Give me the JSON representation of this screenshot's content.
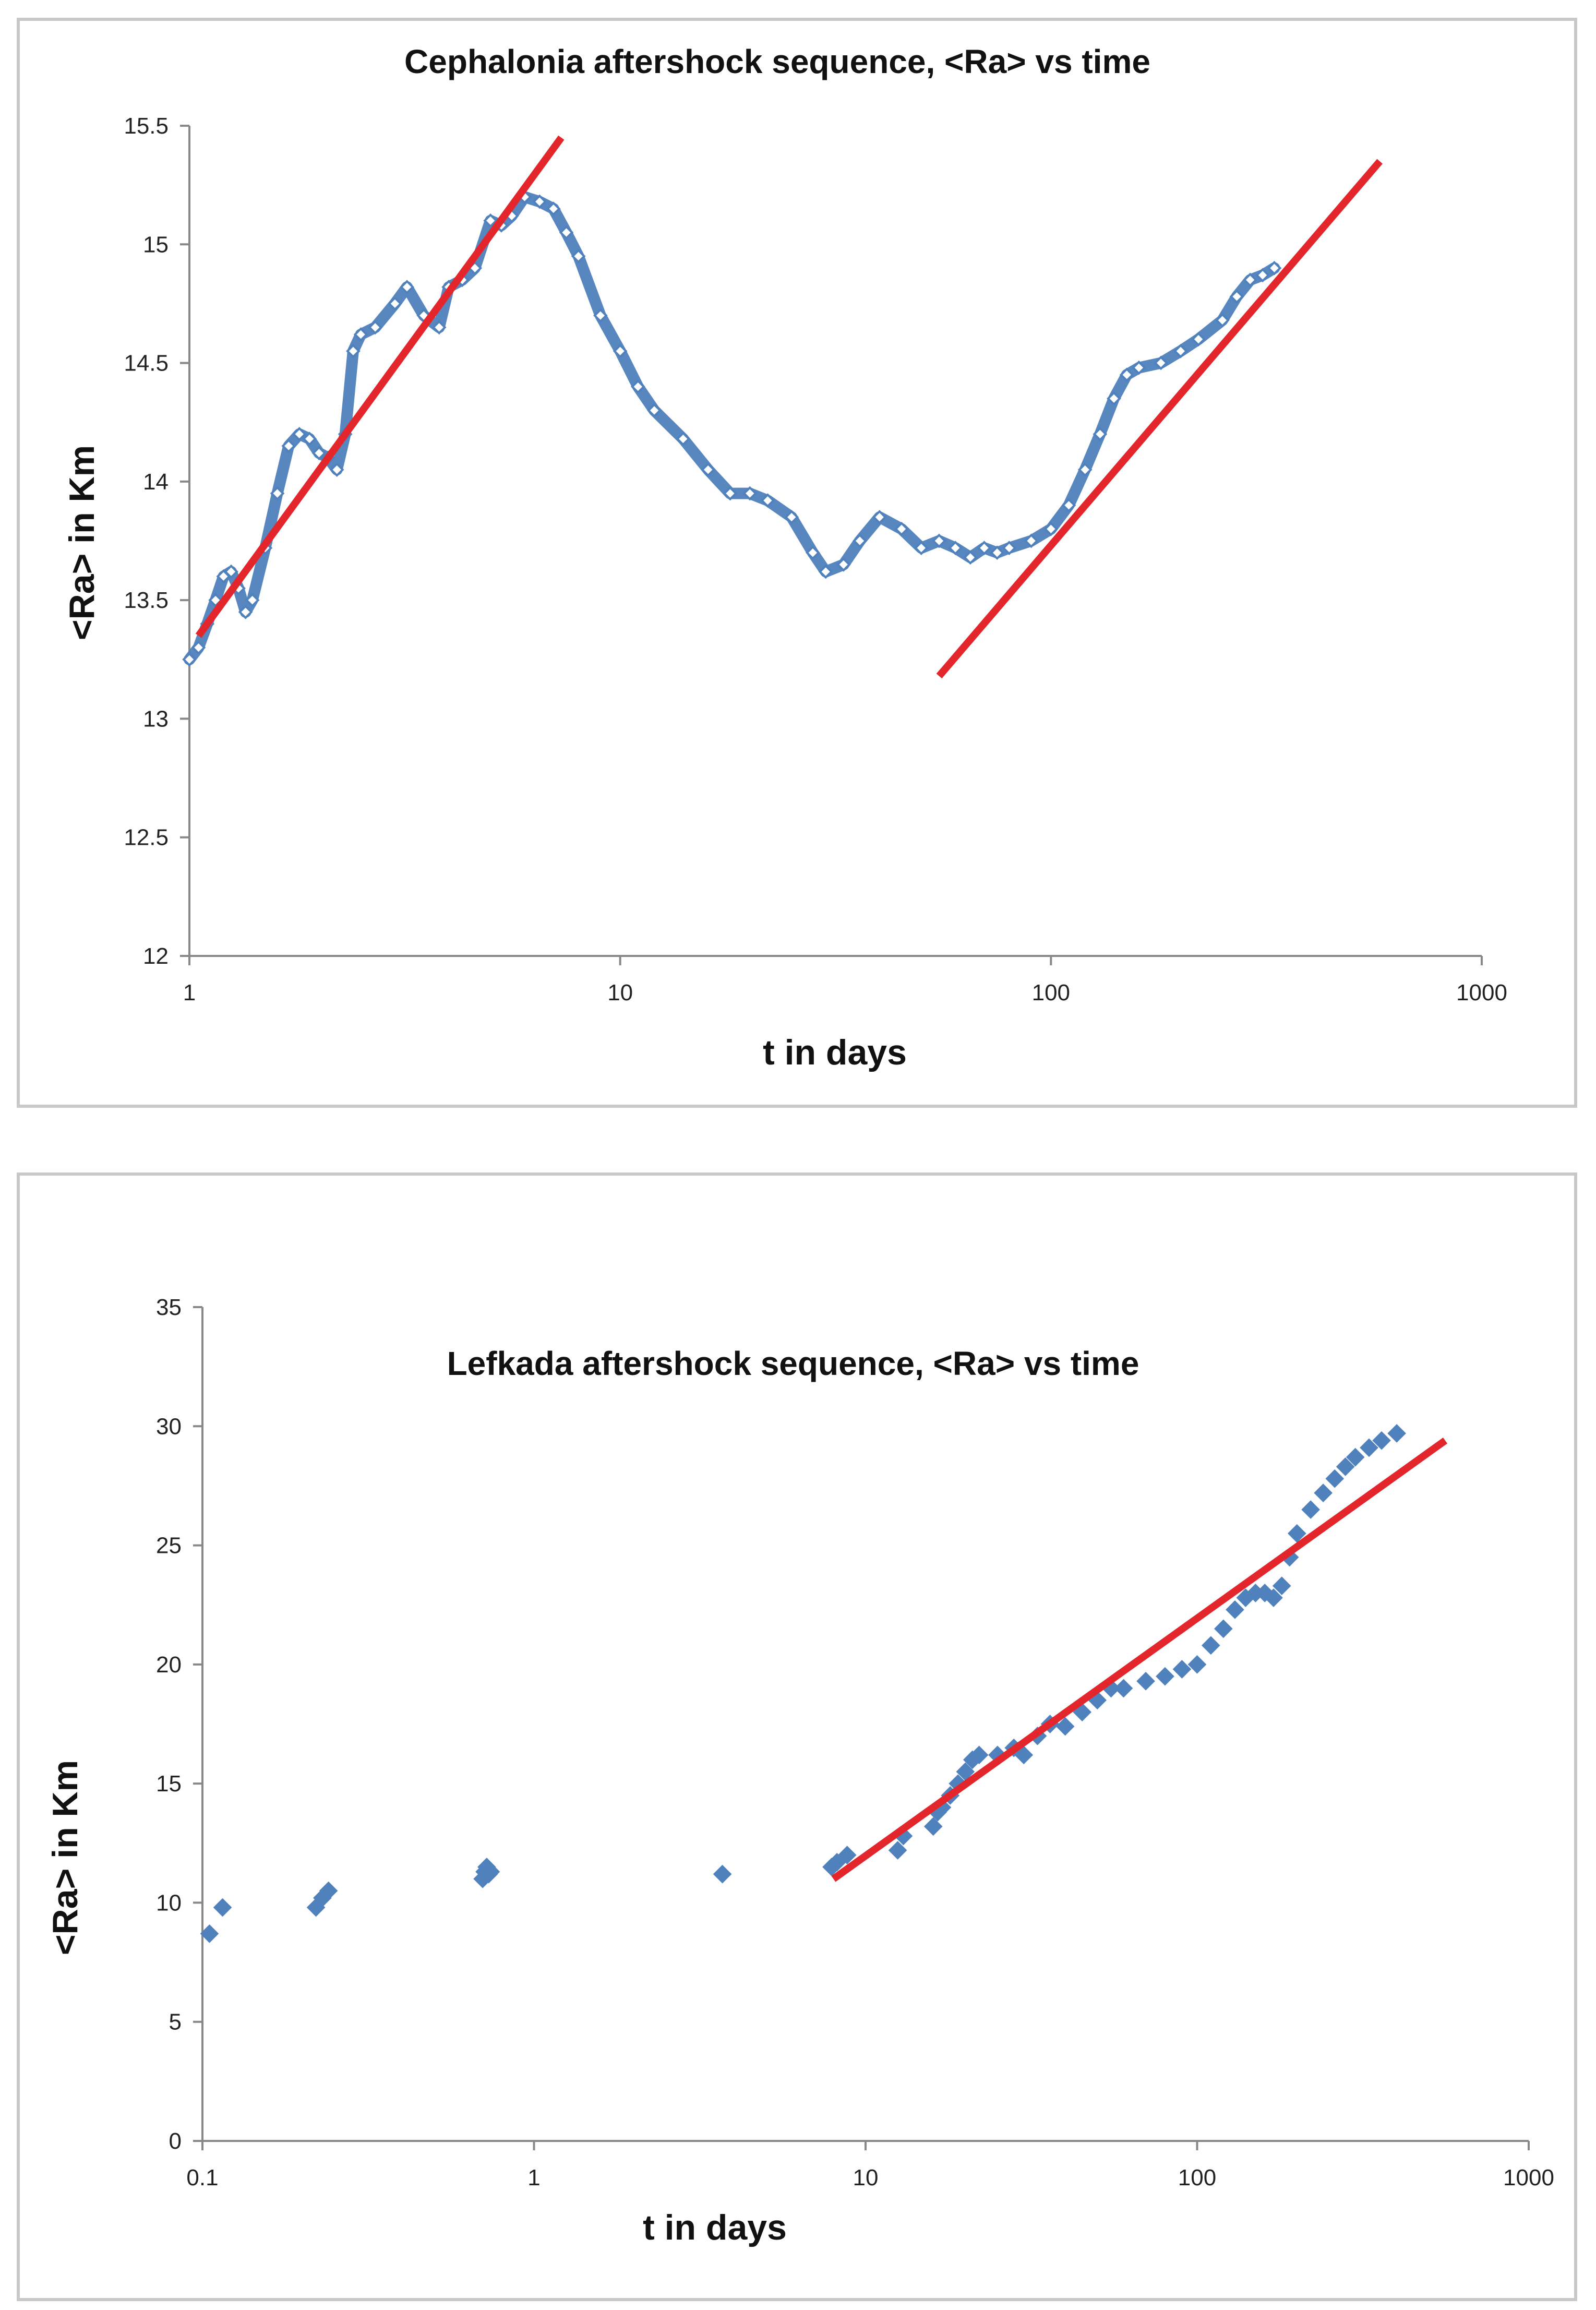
{
  "chart_data": [
    {
      "type": "scatter",
      "title": "Cephalonia aftershock sequence, <Ra> vs time",
      "xlabel": "t in days",
      "ylabel": "<Ra>  in Km",
      "xscale": "log",
      "xlim": [
        1,
        1000
      ],
      "ylim": [
        12,
        15.5
      ],
      "xticks": [
        1,
        10,
        100,
        1000
      ],
      "xtick_labels": [
        "1",
        "10",
        "100",
        "1000"
      ],
      "yticks": [
        12,
        12.5,
        13,
        13.5,
        14,
        14.5,
        15,
        15.5
      ],
      "ytick_labels": [
        "12",
        "12.5",
        "13",
        "13.5",
        "14",
        "14.5",
        "15",
        "15.5"
      ],
      "series": [
        {
          "name": "<Ra>",
          "color": "#4f81bd",
          "marker": "diamond",
          "x": [
            1.0,
            1.05,
            1.1,
            1.15,
            1.2,
            1.25,
            1.3,
            1.35,
            1.4,
            1.5,
            1.6,
            1.7,
            1.8,
            1.9,
            2.0,
            2.1,
            2.2,
            2.3,
            2.4,
            2.5,
            2.7,
            3.0,
            3.2,
            3.5,
            3.8,
            4.0,
            4.3,
            4.6,
            5.0,
            5.3,
            5.6,
            6.0,
            6.5,
            7.0,
            7.5,
            8.0,
            9.0,
            10.0,
            11.0,
            12.0,
            14.0,
            16.0,
            18.0,
            20.0,
            22.0,
            25.0,
            28.0,
            30.0,
            33.0,
            36.0,
            40.0,
            45.0,
            50.0,
            55.0,
            60.0,
            65.0,
            70.0,
            75.0,
            80.0,
            90.0,
            100.0,
            110.0,
            120.0,
            130.0,
            140.0,
            150.0,
            160.0,
            180.0,
            200.0,
            220.0,
            250.0,
            270.0,
            290.0,
            310.0,
            330.0
          ],
          "y": [
            13.25,
            13.3,
            13.4,
            13.5,
            13.6,
            13.62,
            13.55,
            13.45,
            13.5,
            13.72,
            13.95,
            14.15,
            14.2,
            14.18,
            14.12,
            14.1,
            14.05,
            14.2,
            14.55,
            14.62,
            14.65,
            14.75,
            14.82,
            14.7,
            14.65,
            14.82,
            14.85,
            14.9,
            15.1,
            15.08,
            15.12,
            15.2,
            15.18,
            15.15,
            15.05,
            14.95,
            14.7,
            14.55,
            14.4,
            14.3,
            14.18,
            14.05,
            13.95,
            13.95,
            13.92,
            13.85,
            13.7,
            13.62,
            13.65,
            13.75,
            13.85,
            13.8,
            13.72,
            13.75,
            13.72,
            13.68,
            13.72,
            13.7,
            13.72,
            13.75,
            13.8,
            13.9,
            14.05,
            14.2,
            14.35,
            14.45,
            14.48,
            14.5,
            14.55,
            14.6,
            14.68,
            14.78,
            14.85,
            14.87,
            14.9
          ]
        },
        {
          "name": "fit 1",
          "color": "#e3262b",
          "type": "line",
          "x": [
            1.05,
            7.3
          ],
          "y": [
            13.35,
            15.45
          ]
        },
        {
          "name": "fit 2",
          "color": "#e3262b",
          "type": "line",
          "x": [
            55,
            580
          ],
          "y": [
            13.18,
            15.35
          ]
        }
      ]
    },
    {
      "type": "scatter",
      "title": "Lefkada  aftershock sequence, <Ra> vs time",
      "xlabel": "t in days",
      "ylabel": "<Ra>  in Km",
      "xscale": "log",
      "xlim": [
        0.1,
        1000
      ],
      "ylim": [
        0,
        35
      ],
      "xticks": [
        0.1,
        1,
        10,
        100,
        1000
      ],
      "xtick_labels": [
        "0.1",
        "1",
        "10",
        "100",
        "1000"
      ],
      "yticks": [
        0,
        5,
        10,
        15,
        20,
        25,
        30,
        35
      ],
      "ytick_labels": [
        "0",
        "5",
        "10",
        "15",
        "20",
        "25",
        "30",
        "35"
      ],
      "series": [
        {
          "name": "<Ra>",
          "color": "#4f81bd",
          "marker": "diamond",
          "x": [
            0.105,
            0.115,
            0.22,
            0.23,
            0.24,
            0.7,
            0.71,
            0.72,
            0.73,
            0.74,
            3.7,
            7.9,
            8.2,
            8.8,
            12.5,
            13.0,
            16.0,
            16.5,
            17.0,
            18.0,
            19.0,
            20.0,
            21.0,
            22.0,
            25.0,
            28.0,
            30.0,
            33.0,
            36.0,
            40.0,
            45.0,
            50.0,
            55.0,
            60.0,
            70.0,
            80.0,
            90.0,
            100.0,
            110.0,
            120.0,
            130.0,
            140.0,
            150.0,
            160.0,
            170.0,
            180.0,
            190.0,
            200.0,
            220.0,
            240.0,
            260.0,
            280.0,
            300.0,
            330.0,
            360.0,
            400.0
          ],
          "y": [
            8.7,
            9.8,
            9.8,
            10.2,
            10.5,
            11.0,
            11.3,
            11.5,
            11.2,
            11.3,
            11.2,
            11.5,
            11.7,
            12.0,
            12.2,
            12.8,
            13.2,
            13.8,
            14.0,
            14.5,
            15.0,
            15.5,
            16.0,
            16.2,
            16.2,
            16.5,
            16.2,
            17.0,
            17.5,
            17.4,
            18.0,
            18.5,
            19.0,
            19.0,
            19.3,
            19.5,
            19.8,
            20.0,
            20.8,
            21.5,
            22.3,
            22.8,
            23.0,
            23.0,
            22.8,
            23.3,
            24.5,
            25.5,
            26.5,
            27.2,
            27.8,
            28.3,
            28.7,
            29.1,
            29.4,
            29.7
          ]
        },
        {
          "name": "fit",
          "color": "#e3262b",
          "type": "line",
          "x": [
            8.0,
            560
          ],
          "y": [
            11.0,
            29.4
          ]
        }
      ]
    }
  ]
}
